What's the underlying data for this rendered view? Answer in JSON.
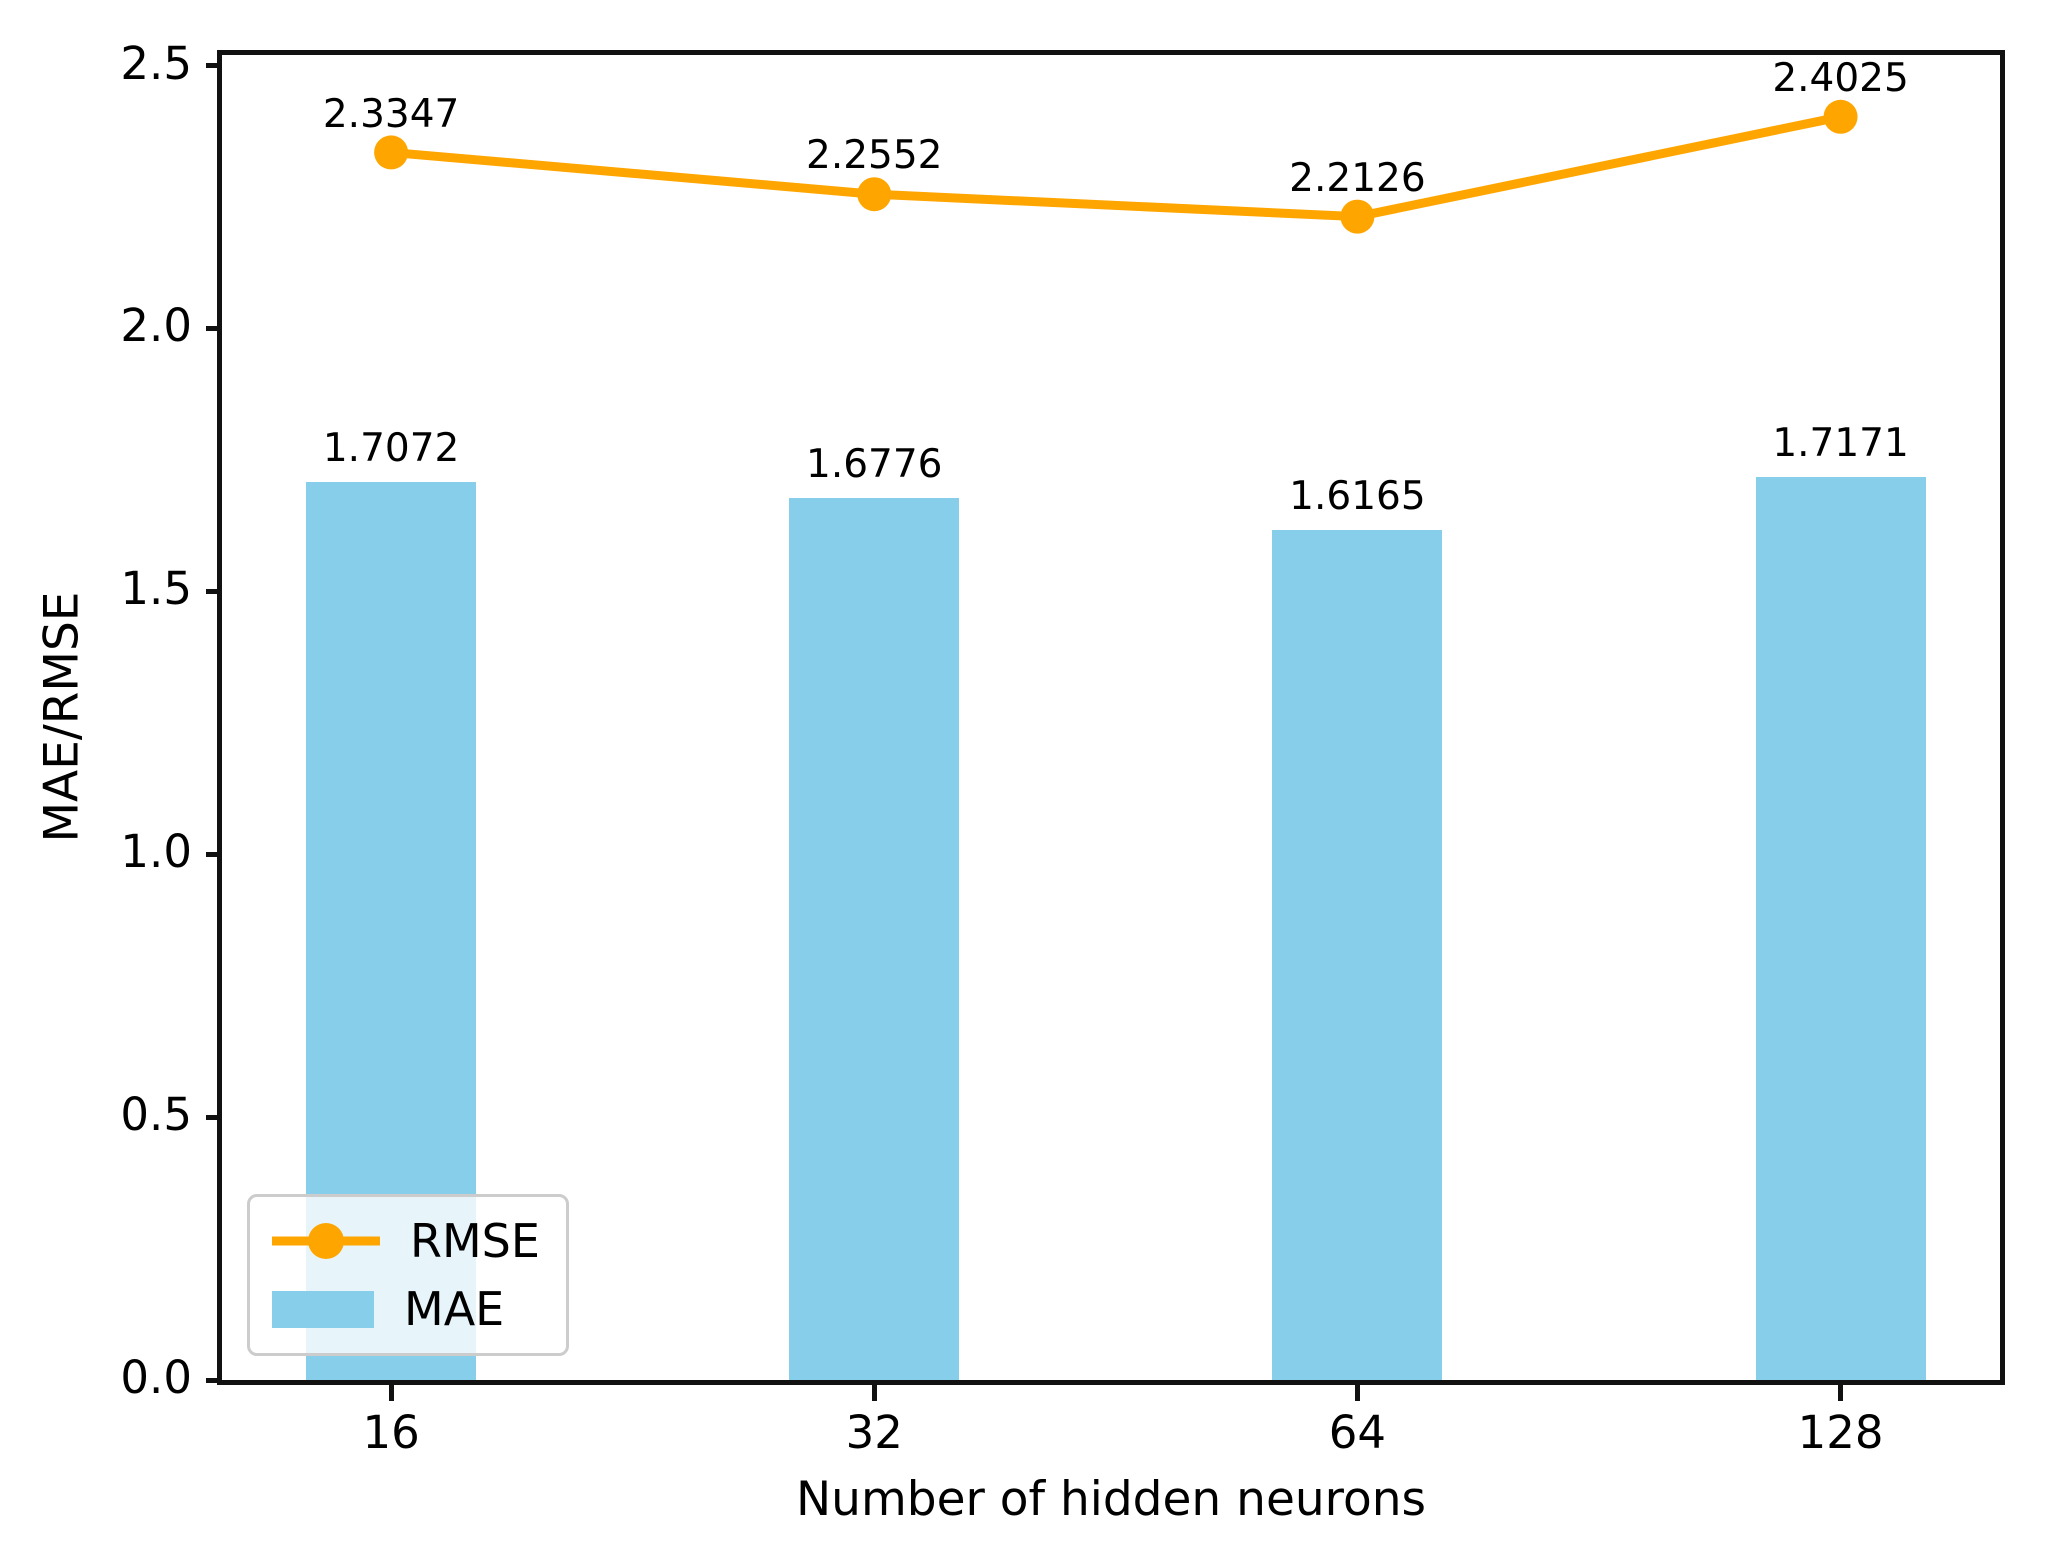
{
  "figure": {
    "xlabel": "Number of hidden neurons",
    "ylabel": "MAE/RMSE"
  },
  "legend": {
    "items": [
      {
        "label": "RMSE",
        "type": "line"
      },
      {
        "label": "MAE",
        "type": "bar"
      }
    ]
  },
  "colors": {
    "bar": "#87CEEB",
    "line": "#FFA500",
    "spine": "#111111",
    "legend_border": "#cccccc",
    "text": "#000000"
  },
  "chart_data": {
    "type": "bar",
    "subtype": "bar-and-line-combo",
    "categories": [
      "16",
      "32",
      "64",
      "128"
    ],
    "series": [
      {
        "name": "MAE",
        "type": "bar",
        "color": "#87CEEB",
        "values": [
          1.7072,
          1.6776,
          1.6165,
          1.7171
        ],
        "labels": [
          "1.7072",
          "1.6776",
          "1.6165",
          "1.7171"
        ]
      },
      {
        "name": "RMSE",
        "type": "line",
        "color": "#FFA500",
        "values": [
          2.3347,
          2.2552,
          2.2126,
          2.4025
        ],
        "labels": [
          "2.3347",
          "2.2552",
          "2.2126",
          "2.4025"
        ]
      }
    ],
    "title": "",
    "xlabel": "Number of hidden neurons",
    "ylabel": "MAE/RMSE",
    "ylim": [
      0,
      2.52
    ],
    "yticks": [
      "0.0",
      "0.5",
      "1.0",
      "1.5",
      "2.0",
      "2.5"
    ],
    "grid": false,
    "legend_position": "lower left"
  }
}
